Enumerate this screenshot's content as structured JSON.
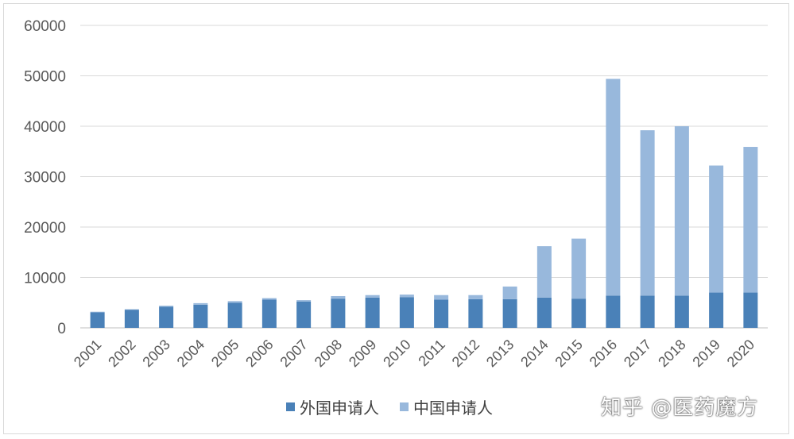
{
  "chart_data": {
    "type": "bar",
    "stacked": true,
    "categories": [
      "2001",
      "2002",
      "2003",
      "2004",
      "2005",
      "2006",
      "2007",
      "2008",
      "2009",
      "2010",
      "2011",
      "2012",
      "2013",
      "2014",
      "2015",
      "2016",
      "2017",
      "2018",
      "2019",
      "2020"
    ],
    "series": [
      {
        "name": "外国申请人",
        "color": "#4a81b8",
        "values": [
          3100,
          3600,
          4200,
          4600,
          5000,
          5600,
          5200,
          5800,
          6000,
          6100,
          5600,
          5700,
          5700,
          6000,
          5800,
          6400,
          6400,
          6400,
          7000,
          7000
        ]
      },
      {
        "name": "中国申请人",
        "color": "#98b8dc",
        "values": [
          100,
          100,
          200,
          300,
          300,
          300,
          300,
          500,
          500,
          500,
          900,
          800,
          2500,
          10200,
          11900,
          43000,
          32800,
          33600,
          25200,
          28900
        ]
      }
    ],
    "ylim": [
      0,
      60000
    ],
    "yticks": [
      "0",
      "10000",
      "20000",
      "30000",
      "40000",
      "50000",
      "60000"
    ],
    "grid": true,
    "legend_position": "bottom"
  },
  "watermark": "知乎 @医药魔方"
}
